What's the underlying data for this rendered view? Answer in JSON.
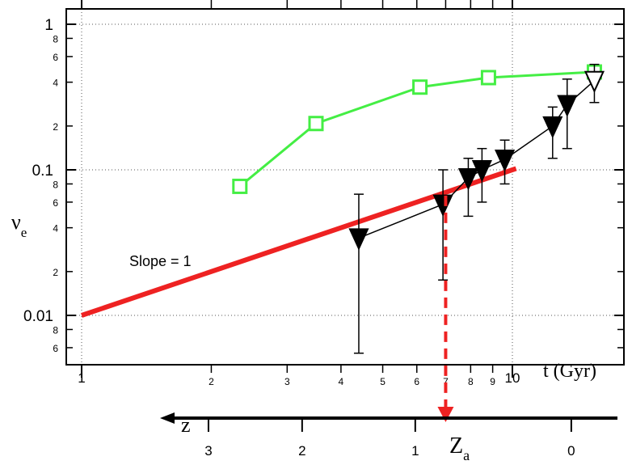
{
  "chart_data": {
    "type": "scatter",
    "title": "",
    "xlabel": "t (Gyr)",
    "ylabel": "ν",
    "ylabel_subscript": "e",
    "x_scale": "log",
    "y_scale": "log",
    "xlim": [
      0.99,
      16.5
    ],
    "ylim": [
      0.0043,
      1.25
    ],
    "grid": "dotted at decades",
    "x_major_ticks": [
      {
        "value": 1,
        "label": "1"
      },
      {
        "value": 10,
        "label": "10"
      }
    ],
    "x_minor_ticks": [
      {
        "value": 2,
        "label": "2"
      },
      {
        "value": 3,
        "label": "3"
      },
      {
        "value": 4,
        "label": "4"
      },
      {
        "value": 5,
        "label": "5"
      },
      {
        "value": 6,
        "label": "6"
      },
      {
        "value": 7,
        "label": "7"
      },
      {
        "value": 8,
        "label": "8"
      },
      {
        "value": 9,
        "label": "9"
      }
    ],
    "y_major_ticks": [
      {
        "value": 0.01,
        "label": "0.01"
      },
      {
        "value": 0.1,
        "label": "0.1"
      },
      {
        "value": 1,
        "label": "1"
      }
    ],
    "y_minor_ticks": [
      {
        "value": 0.006,
        "label": "6"
      },
      {
        "value": 0.008,
        "label": "8"
      },
      {
        "value": 0.02,
        "label": "2"
      },
      {
        "value": 0.04,
        "label": "4"
      },
      {
        "value": 0.06,
        "label": "6"
      },
      {
        "value": 0.08,
        "label": "8"
      },
      {
        "value": 0.2,
        "label": "2"
      },
      {
        "value": 0.4,
        "label": "4"
      },
      {
        "value": 0.6,
        "label": "6"
      },
      {
        "value": 0.8,
        "label": "8"
      }
    ],
    "series": [
      {
        "marker": "open-square",
        "color": "#44ee44",
        "x": [
          2.33,
          3.5,
          6.1,
          8.8,
          15.5
        ],
        "y": [
          0.077,
          0.208,
          0.37,
          0.43,
          0.47
        ]
      },
      {
        "marker": "filled-triangle-down",
        "color": "#000000",
        "x": [
          4.4,
          6.9,
          7.9,
          8.5,
          9.6,
          12.4,
          13.4,
          15.5
        ],
        "y": [
          0.034,
          0.058,
          0.088,
          0.1,
          0.118,
          0.2,
          0.28,
          0.41
        ],
        "y_err_low": [
          0.0055,
          0.0175,
          0.048,
          0.06,
          0.08,
          0.12,
          0.14,
          0.29
        ],
        "y_err_high": [
          0.068,
          0.1,
          0.12,
          0.14,
          0.16,
          0.27,
          0.42,
          0.53
        ],
        "last_point_open": true
      },
      {
        "line": "slope-1",
        "color": "#ee2222",
        "x": [
          1,
          10.2
        ],
        "y": [
          0.01,
          0.102
        ]
      }
    ],
    "annotations": [
      {
        "text": "Slope = 1",
        "x": 1.55,
        "y": 0.0235
      },
      {
        "text": "Z",
        "subscript": "a",
        "marker": "red dashed arrow from the slope-1 line down to the redshift axis",
        "x": 7.0
      }
    ],
    "secondary_axis": {
      "label": "z",
      "direction": "arrow pointing left (increasing z)",
      "ticks": [
        {
          "value": 3,
          "label": "3",
          "t": 1.97
        },
        {
          "value": 2,
          "label": "2",
          "t": 3.25
        },
        {
          "value": 1,
          "label": "1",
          "t": 5.95
        },
        {
          "value": 0,
          "label": "0",
          "t": 13.7
        }
      ]
    }
  }
}
